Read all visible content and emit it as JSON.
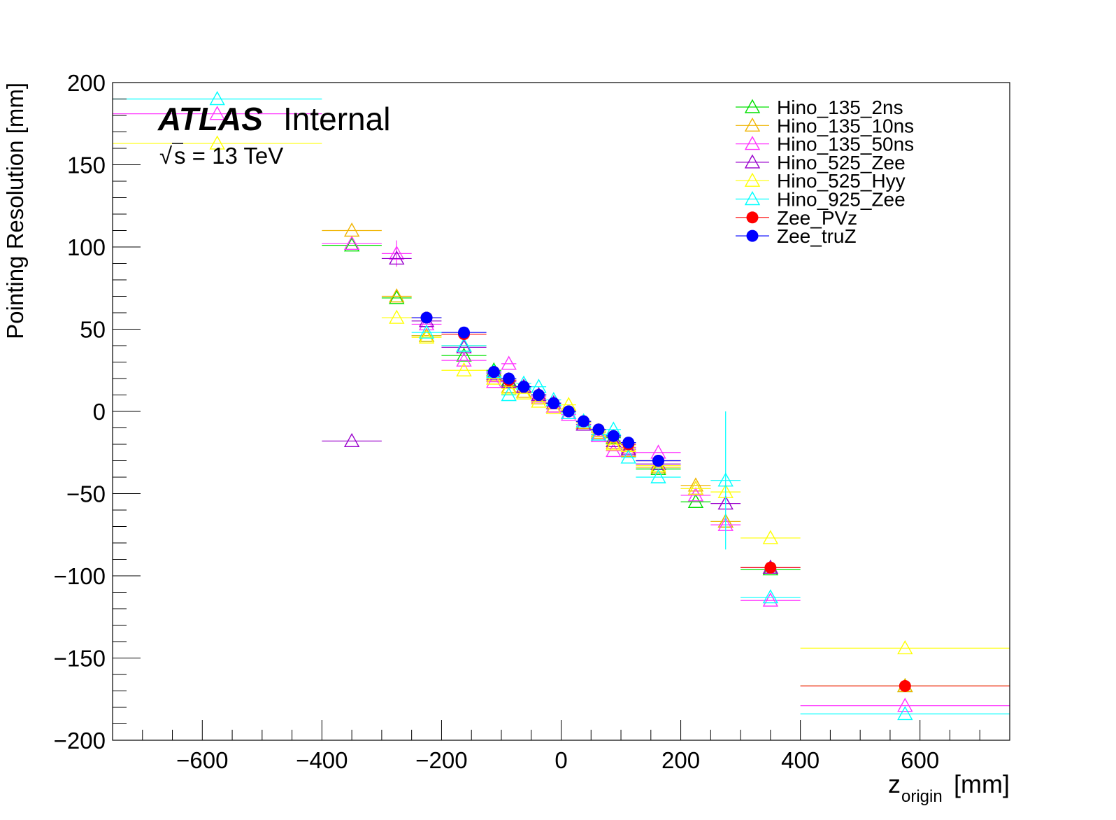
{
  "chart_data": {
    "type": "scatter",
    "title": "",
    "xlabel_main": "z",
    "xlabel_sub": "origin",
    "xlabel_unit": "[mm]",
    "ylabel": "Pointing Resolution [mm]",
    "xlim": [
      -750,
      750
    ],
    "ylim": [
      -200,
      200
    ],
    "x_ticks": [
      -600,
      -400,
      -200,
      0,
      200,
      400,
      600
    ],
    "x_tick_labels": [
      "−600",
      "−400",
      "−200",
      "0",
      "200",
      "400",
      "600"
    ],
    "y_ticks": [
      -200,
      -150,
      -100,
      -50,
      0,
      50,
      100,
      150,
      200
    ],
    "y_tick_labels": [
      "−200",
      "−150",
      "−100",
      "−50",
      "0",
      "50",
      "100",
      "150",
      "200"
    ],
    "grid": false,
    "legend_position": "top-right",
    "annotations": {
      "atlas": "ATLAS",
      "status": "Internal",
      "sqrt_symbol": "√",
      "energy": "s = 13 TeV"
    },
    "series": [
      {
        "name": "Hino_135_2ns",
        "marker": "open-triangle",
        "color": "#00e000",
        "points": [
          {
            "x": -350,
            "y": 101,
            "xerr": 50
          },
          {
            "x": -275,
            "y": 69,
            "xerr": 25
          },
          {
            "x": -225,
            "y": 46,
            "xerr": 25
          },
          {
            "x": -162.5,
            "y": 34,
            "xerr": 37.5
          },
          {
            "x": -112.5,
            "y": 25,
            "xerr": 12.5
          },
          {
            "x": -87.5,
            "y": 19,
            "xerr": 12.5
          },
          {
            "x": -62.5,
            "y": 15,
            "xerr": 12.5
          },
          {
            "x": -37.5,
            "y": 10,
            "xerr": 12.5
          },
          {
            "x": -12.5,
            "y": 5,
            "xerr": 12.5
          },
          {
            "x": 12.5,
            "y": -1,
            "xerr": 12.5
          },
          {
            "x": 37.5,
            "y": -7,
            "xerr": 12.5
          },
          {
            "x": 62.5,
            "y": -12,
            "xerr": 12.5
          },
          {
            "x": 87.5,
            "y": -16,
            "xerr": 12.5
          },
          {
            "x": 112.5,
            "y": -22,
            "xerr": 12.5
          },
          {
            "x": 162.5,
            "y": -35,
            "xerr": 37.5
          },
          {
            "x": 225,
            "y": -55,
            "xerr": 25
          },
          {
            "x": 275,
            "y": -67,
            "xerr": 25
          },
          {
            "x": 350,
            "y": -96,
            "xerr": 50
          },
          {
            "x": 575,
            "y": -167,
            "xerr": 175
          }
        ]
      },
      {
        "name": "Hino_135_10ns",
        "marker": "open-triangle",
        "color": "#f0b400",
        "points": [
          {
            "x": -350,
            "y": 110,
            "xerr": 50
          },
          {
            "x": -275,
            "y": 70,
            "xerr": 25
          },
          {
            "x": -225,
            "y": 46,
            "xerr": 25
          },
          {
            "x": -162.5,
            "y": 40,
            "xerr": 37.5
          },
          {
            "x": -112.5,
            "y": 22,
            "xerr": 12.5
          },
          {
            "x": -87.5,
            "y": 15,
            "xerr": 12.5
          },
          {
            "x": -62.5,
            "y": 12,
            "xerr": 12.5
          },
          {
            "x": -37.5,
            "y": 8,
            "xerr": 12.5
          },
          {
            "x": -12.5,
            "y": 3,
            "xerr": 12.5
          },
          {
            "x": 12.5,
            "y": -1,
            "xerr": 12.5
          },
          {
            "x": 37.5,
            "y": -7,
            "xerr": 12.5
          },
          {
            "x": 62.5,
            "y": -13,
            "xerr": 12.5
          },
          {
            "x": 87.5,
            "y": -19,
            "xerr": 12.5
          },
          {
            "x": 112.5,
            "y": -24,
            "xerr": 12.5
          },
          {
            "x": 162.5,
            "y": -34,
            "xerr": 37.5
          },
          {
            "x": 225,
            "y": -45,
            "xerr": 25
          },
          {
            "x": 275,
            "y": -67,
            "xerr": 25
          },
          {
            "x": 350,
            "y": -95,
            "xerr": 50
          },
          {
            "x": 575,
            "y": -167,
            "xerr": 175
          }
        ]
      },
      {
        "name": "Hino_135_50ns",
        "marker": "open-triangle",
        "color": "#ff33ff",
        "points": [
          {
            "x": -575,
            "y": 181,
            "xerr": 175
          },
          {
            "x": -350,
            "y": 102,
            "xerr": 50
          },
          {
            "x": -275,
            "y": 96,
            "xerr": 25,
            "yerr": 8
          },
          {
            "x": -225,
            "y": 53,
            "xerr": 25
          },
          {
            "x": -162.5,
            "y": 31,
            "xerr": 37.5
          },
          {
            "x": -112.5,
            "y": 18,
            "xerr": 12.5
          },
          {
            "x": -87.5,
            "y": 29,
            "xerr": 12.5
          },
          {
            "x": -62.5,
            "y": 15,
            "xerr": 12.5
          },
          {
            "x": -37.5,
            "y": 9,
            "xerr": 12.5
          },
          {
            "x": -12.5,
            "y": 3,
            "xerr": 12.5
          },
          {
            "x": 12.5,
            "y": -2,
            "xerr": 12.5
          },
          {
            "x": 37.5,
            "y": -8,
            "xerr": 12.5
          },
          {
            "x": 62.5,
            "y": -15,
            "xerr": 12.5
          },
          {
            "x": 87.5,
            "y": -24,
            "xerr": 12.5
          },
          {
            "x": 112.5,
            "y": -22,
            "xerr": 12.5
          },
          {
            "x": 162.5,
            "y": -25,
            "xerr": 37.5
          },
          {
            "x": 225,
            "y": -51,
            "xerr": 25
          },
          {
            "x": 275,
            "y": -69,
            "xerr": 25
          },
          {
            "x": 350,
            "y": -115,
            "xerr": 50
          },
          {
            "x": 575,
            "y": -179,
            "xerr": 175
          }
        ]
      },
      {
        "name": "Hino_525_Zee",
        "marker": "open-triangle",
        "color": "#9900cc",
        "points": [
          {
            "x": -350,
            "y": -18,
            "xerr": 50
          },
          {
            "x": -275,
            "y": 93,
            "xerr": 25
          },
          {
            "x": -225,
            "y": 55,
            "xerr": 25
          },
          {
            "x": -162.5,
            "y": 39,
            "xerr": 37.5
          },
          {
            "x": -112.5,
            "y": 23,
            "xerr": 12.5
          },
          {
            "x": -87.5,
            "y": 18,
            "xerr": 12.5
          },
          {
            "x": -62.5,
            "y": 15,
            "xerr": 12.5
          },
          {
            "x": -37.5,
            "y": 10,
            "xerr": 12.5
          },
          {
            "x": -12.5,
            "y": 5,
            "xerr": 12.5
          },
          {
            "x": 12.5,
            "y": -1,
            "xerr": 12.5
          },
          {
            "x": 37.5,
            "y": -8,
            "xerr": 12.5
          },
          {
            "x": 62.5,
            "y": -14,
            "xerr": 12.5
          },
          {
            "x": 87.5,
            "y": -18,
            "xerr": 12.5
          },
          {
            "x": 112.5,
            "y": -23,
            "xerr": 12.5
          },
          {
            "x": 162.5,
            "y": -32,
            "xerr": 37.5
          },
          {
            "x": 225,
            "y": -47,
            "xerr": 25
          },
          {
            "x": 275,
            "y": -56,
            "xerr": 25
          },
          {
            "x": 350,
            "y": -95,
            "xerr": 50
          }
        ]
      },
      {
        "name": "Hino_525_Hyy",
        "marker": "open-triangle",
        "color": "#ffff00",
        "points": [
          {
            "x": -575,
            "y": 163,
            "xerr": 175
          },
          {
            "x": -275,
            "y": 57,
            "xerr": 25
          },
          {
            "x": -225,
            "y": 45,
            "xerr": 25
          },
          {
            "x": -162.5,
            "y": 25,
            "xerr": 37.5
          },
          {
            "x": -112.5,
            "y": 20,
            "xerr": 12.5
          },
          {
            "x": -87.5,
            "y": 14,
            "xerr": 12.5
          },
          {
            "x": -62.5,
            "y": 11,
            "xerr": 12.5
          },
          {
            "x": -37.5,
            "y": 6,
            "xerr": 12.5
          },
          {
            "x": -12.5,
            "y": 2,
            "xerr": 12.5
          },
          {
            "x": 12.5,
            "y": 4,
            "xerr": 12.5
          },
          {
            "x": 37.5,
            "y": -6,
            "xerr": 12.5
          },
          {
            "x": 62.5,
            "y": -12,
            "xerr": 12.5
          },
          {
            "x": 87.5,
            "y": -20,
            "xerr": 12.5
          },
          {
            "x": 112.5,
            "y": -21,
            "xerr": 12.5
          },
          {
            "x": 162.5,
            "y": -33,
            "xerr": 37.5
          },
          {
            "x": 225,
            "y": -47,
            "xerr": 25
          },
          {
            "x": 275,
            "y": -49,
            "xerr": 25
          },
          {
            "x": 350,
            "y": -77,
            "xerr": 50
          },
          {
            "x": 575,
            "y": -144,
            "xerr": 175
          }
        ]
      },
      {
        "name": "Hino_925_Zee",
        "marker": "open-triangle",
        "color": "#00ffff",
        "points": [
          {
            "x": -575,
            "y": 190,
            "xerr": 175
          },
          {
            "x": -225,
            "y": 48,
            "xerr": 25
          },
          {
            "x": -162.5,
            "y": 40,
            "xerr": 37.5
          },
          {
            "x": -112.5,
            "y": 24,
            "xerr": 12.5
          },
          {
            "x": -87.5,
            "y": 10,
            "xerr": 12.5
          },
          {
            "x": -62.5,
            "y": 17,
            "xerr": 12.5
          },
          {
            "x": -37.5,
            "y": 15,
            "xerr": 12.5
          },
          {
            "x": -12.5,
            "y": 7,
            "xerr": 12.5
          },
          {
            "x": 12.5,
            "y": -1,
            "xerr": 12.5
          },
          {
            "x": 37.5,
            "y": -6,
            "xerr": 12.5
          },
          {
            "x": 62.5,
            "y": -14,
            "xerr": 12.5
          },
          {
            "x": 87.5,
            "y": -11,
            "xerr": 12.5
          },
          {
            "x": 112.5,
            "y": -28,
            "xerr": 12.5
          },
          {
            "x": 162.5,
            "y": -40,
            "xerr": 37.5
          },
          {
            "x": 275,
            "y": -42,
            "xerr": 25,
            "yerr": 42
          },
          {
            "x": 350,
            "y": -113,
            "xerr": 50
          },
          {
            "x": 575,
            "y": -184,
            "xerr": 175
          }
        ]
      },
      {
        "name": "Zee_PVz",
        "marker": "filled-circle",
        "color": "#ff0000",
        "points": [
          {
            "x": -225,
            "y": 57,
            "xerr": 25
          },
          {
            "x": -162.5,
            "y": 47,
            "xerr": 37.5
          },
          {
            "x": -112.5,
            "y": 24,
            "xerr": 12.5
          },
          {
            "x": -87.5,
            "y": 19,
            "xerr": 12.5
          },
          {
            "x": -62.5,
            "y": 15,
            "xerr": 12.5
          },
          {
            "x": -37.5,
            "y": 10,
            "xerr": 12.5
          },
          {
            "x": -12.5,
            "y": 5,
            "xerr": 12.5
          },
          {
            "x": 12.5,
            "y": 0,
            "xerr": 12.5
          },
          {
            "x": 37.5,
            "y": -6,
            "xerr": 12.5
          },
          {
            "x": 62.5,
            "y": -11,
            "xerr": 12.5
          },
          {
            "x": 87.5,
            "y": -15,
            "xerr": 12.5
          },
          {
            "x": 112.5,
            "y": -20,
            "xerr": 12.5
          },
          {
            "x": 162.5,
            "y": -30,
            "xerr": 37.5
          },
          {
            "x": 350,
            "y": -95,
            "xerr": 50
          },
          {
            "x": 575,
            "y": -167,
            "xerr": 175
          }
        ]
      },
      {
        "name": "Zee_truZ",
        "marker": "filled-circle",
        "color": "#0000ff",
        "points": [
          {
            "x": -225,
            "y": 57,
            "xerr": 25
          },
          {
            "x": -162.5,
            "y": 48,
            "xerr": 37.5
          },
          {
            "x": -112.5,
            "y": 24,
            "xerr": 12.5
          },
          {
            "x": -87.5,
            "y": 20,
            "xerr": 12.5
          },
          {
            "x": -62.5,
            "y": 15,
            "xerr": 12.5
          },
          {
            "x": -37.5,
            "y": 10,
            "xerr": 12.5
          },
          {
            "x": -12.5,
            "y": 5,
            "xerr": 12.5
          },
          {
            "x": 12.5,
            "y": 0,
            "xerr": 12.5
          },
          {
            "x": 37.5,
            "y": -6,
            "xerr": 12.5
          },
          {
            "x": 62.5,
            "y": -11,
            "xerr": 12.5
          },
          {
            "x": 87.5,
            "y": -15,
            "xerr": 12.5
          },
          {
            "x": 112.5,
            "y": -19,
            "xerr": 12.5
          },
          {
            "x": 162.5,
            "y": -30,
            "xerr": 37.5
          }
        ]
      }
    ]
  }
}
